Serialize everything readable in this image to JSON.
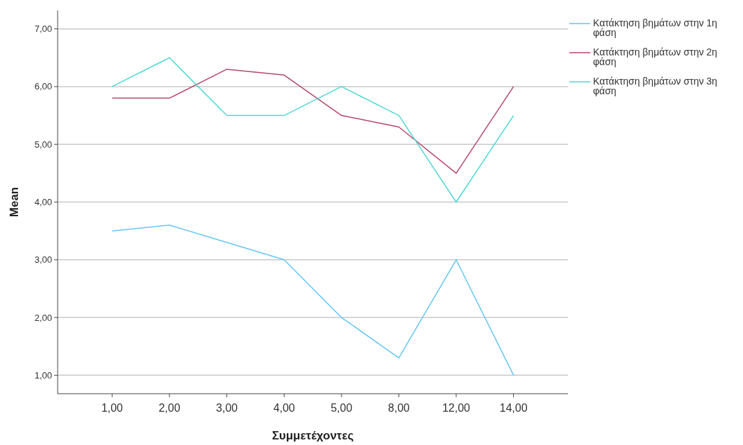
{
  "chart_data": {
    "type": "line",
    "xlabel": "Συμμετέχοντες",
    "ylabel": "Mean",
    "categories": [
      "1,00",
      "2,00",
      "3,00",
      "4,00",
      "5,00",
      "8,00",
      "12,00",
      "14,00"
    ],
    "series": [
      {
        "name": "Κατάκτηση βημάτων στην 1η φάση",
        "color": "#62c6f4",
        "values": [
          3.5,
          3.6,
          3.3,
          3.0,
          2.0,
          1.3,
          3.0,
          1.0
        ]
      },
      {
        "name": "Κατάκτηση βημάτων στην 2η φάση",
        "color": "#b4466c",
        "values": [
          5.8,
          5.8,
          6.3,
          6.2,
          5.5,
          5.3,
          4.5,
          6.0
        ]
      },
      {
        "name": "Κατάκτηση βημάτων στην 3η φάση",
        "color": "#4fd6d2",
        "values": [
          6.0,
          6.5,
          5.5,
          5.5,
          6.0,
          5.5,
          4.0,
          5.5
        ]
      }
    ],
    "ylim": [
      0.68,
      7.32
    ],
    "yticks": [
      {
        "value": 1,
        "label": "1,00"
      },
      {
        "value": 2,
        "label": "2,00"
      },
      {
        "value": 3,
        "label": "3,00"
      },
      {
        "value": 4,
        "label": "4,00"
      },
      {
        "value": 5,
        "label": "5,00"
      },
      {
        "value": 6,
        "label": "6,00"
      },
      {
        "value": 7,
        "label": "7,00"
      }
    ],
    "grid": "y",
    "legend": "top right",
    "marker": "none",
    "line_style": "solid"
  }
}
